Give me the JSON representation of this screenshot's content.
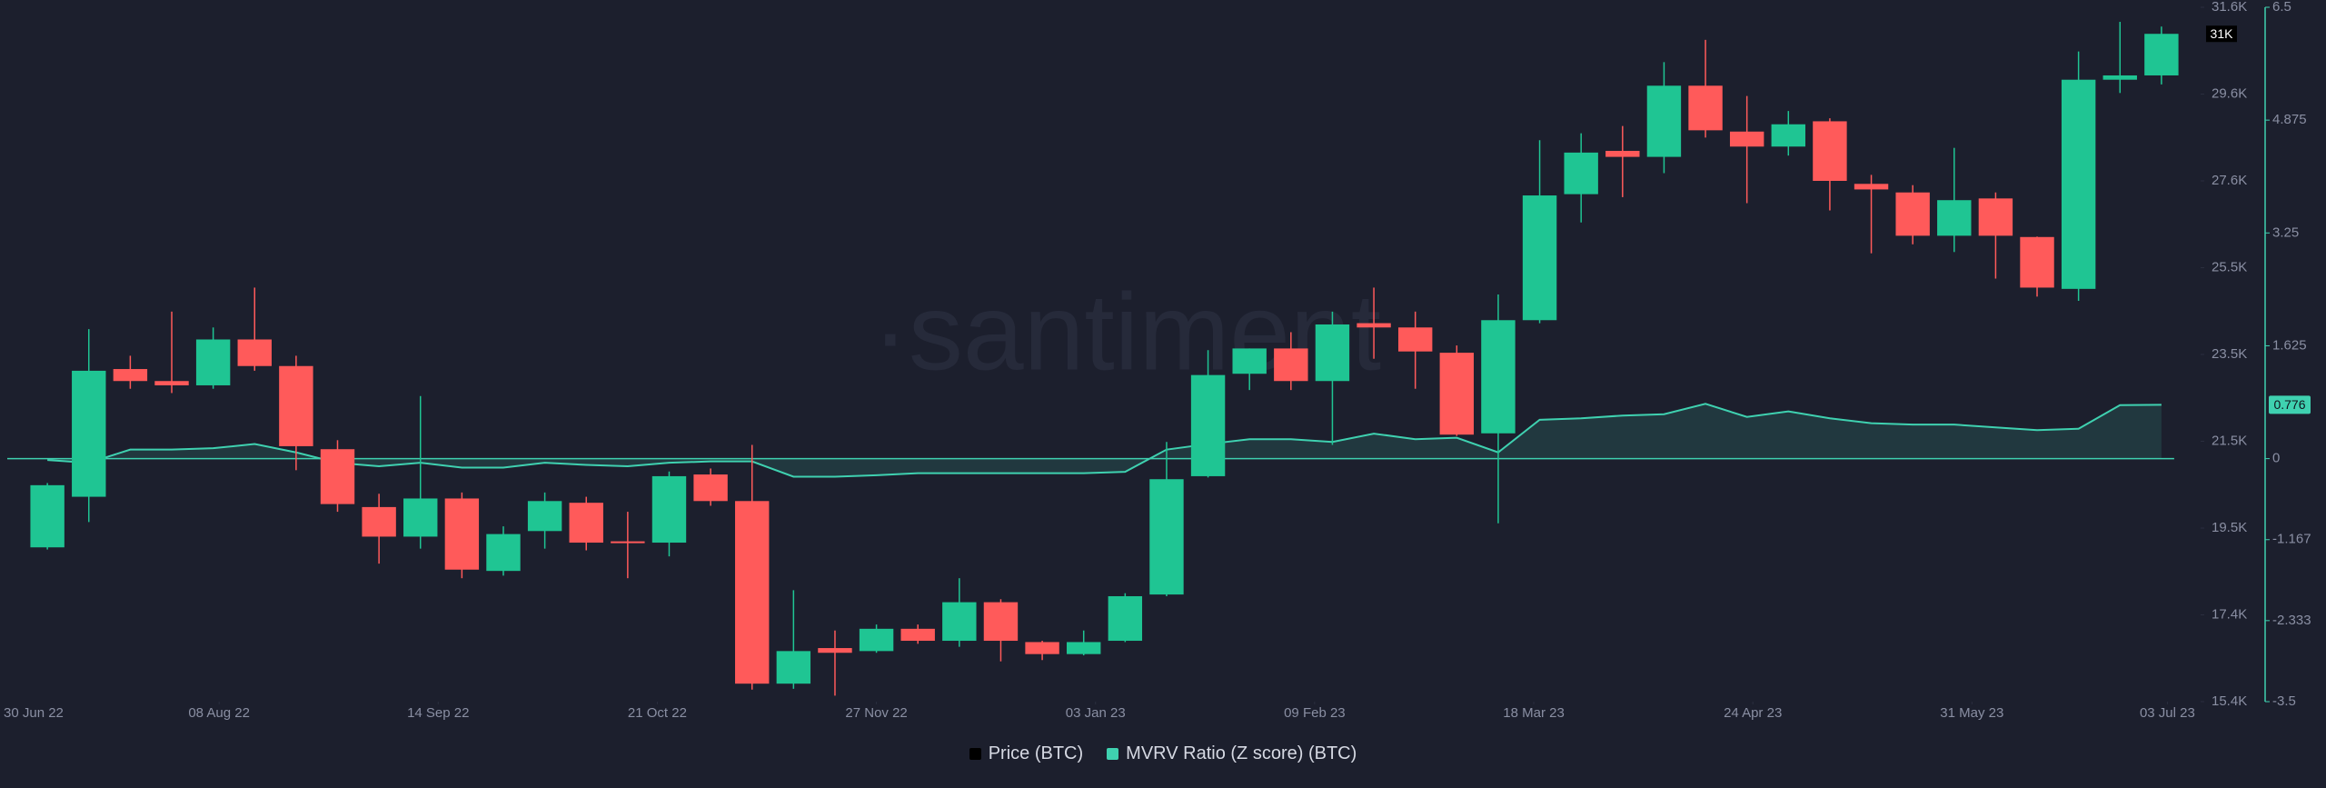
{
  "chart_data": {
    "type": "candlestick",
    "watermark": "·santiment",
    "x": [
      "2022-07-10",
      "2022-07-17",
      "2022-07-24",
      "2022-07-31",
      "2022-08-07",
      "2022-08-14",
      "2022-08-21",
      "2022-08-28",
      "2022-09-04",
      "2022-09-11",
      "2022-09-18",
      "2022-09-25",
      "2022-10-02",
      "2022-10-09",
      "2022-10-16",
      "2022-10-23",
      "2022-10-30",
      "2022-11-06",
      "2022-11-13",
      "2022-11-20",
      "2022-11-27",
      "2022-12-04",
      "2022-12-11",
      "2022-12-18",
      "2022-12-25",
      "2023-01-01",
      "2023-01-08",
      "2023-01-15",
      "2023-01-22",
      "2023-01-29",
      "2023-02-05",
      "2023-02-12",
      "2023-02-19",
      "2023-02-26",
      "2023-03-05",
      "2023-03-12",
      "2023-03-19",
      "2023-03-26",
      "2023-04-02",
      "2023-04-09",
      "2023-04-16",
      "2023-04-23",
      "2023-04-30",
      "2023-05-07",
      "2023-05-14",
      "2023-05-21",
      "2023-05-28",
      "2023-06-04",
      "2023-06-11",
      "2023-06-18",
      "2023-06-25",
      "2023-07-02"
    ],
    "xlim": [
      "2022-07-02",
      "2023-07-08"
    ],
    "xticks": [
      {
        "value": "2022-06-30",
        "label": "30 Jun 22"
      },
      {
        "value": "2022-08-08",
        "label": "08 Aug 22"
      },
      {
        "value": "2022-09-14",
        "label": "14 Sep 22"
      },
      {
        "value": "2022-10-21",
        "label": "21 Oct 22"
      },
      {
        "value": "2022-11-27",
        "label": "27 Nov 22"
      },
      {
        "value": "2023-01-03",
        "label": "03 Jan 23"
      },
      {
        "value": "2023-02-09",
        "label": "09 Feb 23"
      },
      {
        "value": "2023-03-18",
        "label": "18 Mar 23"
      },
      {
        "value": "2023-04-24",
        "label": "24 Apr 23"
      },
      {
        "value": "2023-05-31",
        "label": "31 May 23"
      },
      {
        "value": "2023-07-03",
        "label": "03 Jul 23"
      }
    ],
    "ylim": [
      15400,
      31600
    ],
    "yticks": [
      {
        "value": 15400,
        "label": "15.4K"
      },
      {
        "value": 17425,
        "label": "17.4K"
      },
      {
        "value": 19450,
        "label": "19.5K"
      },
      {
        "value": 21475,
        "label": "21.5K"
      },
      {
        "value": 23500,
        "label": "23.5K"
      },
      {
        "value": 25525,
        "label": "25.5K"
      },
      {
        "value": 27550,
        "label": "27.6K"
      },
      {
        "value": 29575,
        "label": "29.6K"
      },
      {
        "value": 31600,
        "label": "31.6K"
      }
    ],
    "y2lim": [
      -3.5,
      6.5
    ],
    "y2ticks": [
      -3.5,
      -2.333,
      -1.167,
      0,
      1.625,
      3.25,
      4.875,
      6.5
    ],
    "series": [
      {
        "name": "Price (BTC)",
        "color": "#000000",
        "up_color": "#1fc593",
        "down_color": "#ff5a5a",
        "open": [
          19000,
          20180,
          23160,
          22880,
          22780,
          23850,
          23230,
          21290,
          19940,
          19250,
          20140,
          18450,
          19380,
          20040,
          19140,
          19110,
          20700,
          20080,
          15820,
          16650,
          16580,
          17100,
          16820,
          17720,
          16790,
          16510,
          16820,
          17900,
          20660,
          23050,
          23640,
          22880,
          24230,
          24130,
          23540,
          21660,
          24300,
          27240,
          28250,
          28110,
          29770,
          28700,
          28350,
          28940,
          27480,
          27280,
          26270,
          27140,
          26240,
          25030,
          29910,
          30010
        ],
        "high": [
          20500,
          24090,
          23470,
          24500,
          24130,
          25060,
          23470,
          21500,
          20250,
          22530,
          20280,
          19490,
          20280,
          20180,
          19830,
          20770,
          20840,
          21390,
          18000,
          17060,
          17200,
          17200,
          18280,
          17790,
          16820,
          17060,
          17930,
          21460,
          23600,
          23640,
          24020,
          24500,
          25060,
          24500,
          23710,
          24900,
          28500,
          28660,
          28830,
          30320,
          30840,
          29530,
          29180,
          29010,
          27690,
          27450,
          28320,
          27280,
          26250,
          30570,
          31260,
          31150
        ],
        "low": [
          18950,
          19590,
          22700,
          22600,
          22700,
          23120,
          20800,
          19830,
          18620,
          18970,
          18280,
          18340,
          18970,
          18930,
          18280,
          18790,
          19970,
          15680,
          15700,
          15540,
          16540,
          16750,
          16680,
          16340,
          16370,
          16480,
          16790,
          17860,
          20630,
          22670,
          22670,
          21390,
          23400,
          22700,
          21600,
          19560,
          24230,
          26580,
          27170,
          27730,
          28560,
          27030,
          28140,
          26860,
          25860,
          26070,
          25890,
          25270,
          24850,
          24750,
          29600,
          29800
        ],
        "close": [
          20450,
          23120,
          22880,
          22780,
          23850,
          23230,
          21360,
          20010,
          19250,
          20140,
          18480,
          19310,
          20080,
          19110,
          19100,
          20660,
          20080,
          15820,
          16580,
          16540,
          17100,
          16820,
          17720,
          16820,
          16510,
          16790,
          17860,
          20590,
          23020,
          23640,
          22880,
          24200,
          24130,
          23570,
          21630,
          24300,
          27210,
          28210,
          28110,
          29770,
          28730,
          28350,
          28870,
          27550,
          27350,
          26270,
          27100,
          26270,
          25060,
          29910,
          30010,
          30980
        ],
        "last_label": "31K"
      },
      {
        "name": "MVRV Ratio (Z score) (BTC)",
        "color": "#3fd1b0",
        "axis": "y2",
        "type": "area",
        "values": [
          -0.02,
          -0.06,
          0.13,
          0.13,
          0.15,
          0.21,
          0.09,
          -0.06,
          -0.11,
          -0.06,
          -0.13,
          -0.13,
          -0.06,
          -0.09,
          -0.11,
          -0.06,
          -0.04,
          -0.04,
          -0.26,
          -0.26,
          -0.24,
          -0.21,
          -0.21,
          -0.21,
          -0.21,
          -0.21,
          -0.19,
          0.13,
          0.21,
          0.28,
          0.28,
          0.24,
          0.36,
          0.28,
          0.3,
          0.09,
          0.56,
          0.58,
          0.62,
          0.64,
          0.79,
          0.6,
          0.68,
          0.58,
          0.51,
          0.49,
          0.49,
          0.45,
          0.41,
          0.43,
          0.77,
          0.776
        ],
        "last_label": "0.776"
      }
    ]
  }
}
